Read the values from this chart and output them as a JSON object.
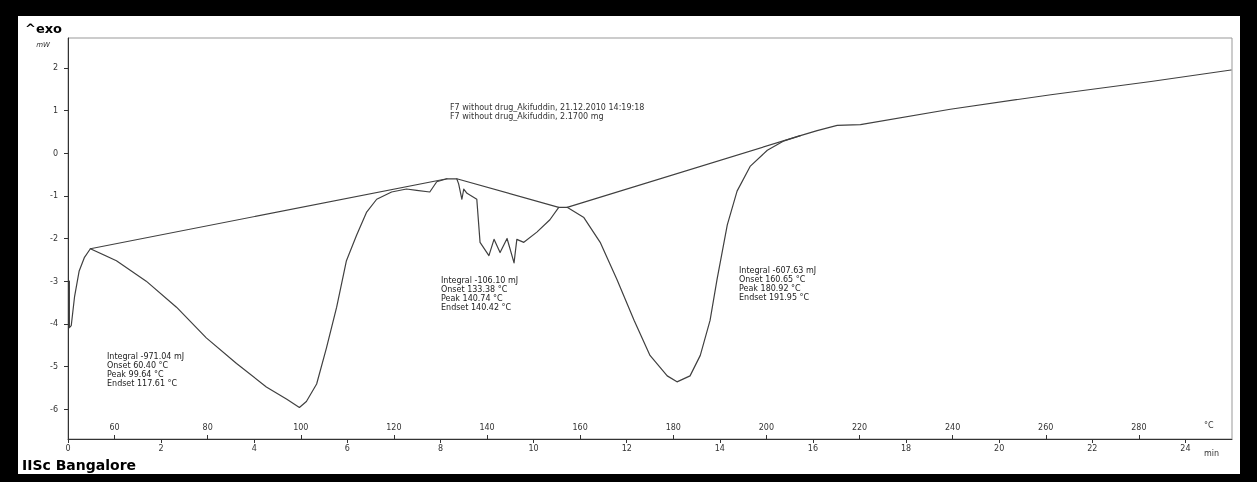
{
  "chart_data": {
    "type": "line",
    "title": "^exo",
    "subtitle": "F7 without drug_Akifuddin, 21.12.2010 14:19:18\nF7 without drug_Akifuddin, 2.1700 mg",
    "xlabel": "min",
    "x2label": "°C",
    "ylabel": "mW",
    "xlim": [
      0,
      25
    ],
    "xticks": [
      0,
      2,
      4,
      6,
      8,
      10,
      12,
      14,
      16,
      18,
      20,
      22,
      24
    ],
    "x2lim": [
      50,
      300
    ],
    "x2ticks": [
      60,
      80,
      100,
      120,
      140,
      160,
      180,
      200,
      220,
      240,
      260,
      280
    ],
    "ylim": [
      -6.7,
      2.7
    ],
    "yticks": [
      -6,
      -5,
      -4,
      -3,
      -2,
      -1,
      0,
      1,
      2
    ],
    "grid": false,
    "marker": "none",
    "line_style": "solid",
    "series": [
      {
        "color": "#404040",
        "x": [
          0.03,
          0.03,
          0.07,
          0.14,
          0.24,
          0.35,
          0.48,
          1.04,
          1.68,
          2.33,
          2.97,
          3.62,
          4.26,
          4.7,
          4.97,
          5.12,
          5.34,
          5.55,
          5.77,
          5.98,
          6.2,
          6.41,
          6.63,
          6.95,
          7.27,
          7.49,
          7.77,
          7.92,
          8.14,
          8.35,
          8.39,
          8.46,
          8.5,
          8.57,
          8.78,
          8.85,
          9.04,
          9.15,
          9.28,
          9.43,
          9.58,
          9.64,
          9.79,
          10.07,
          10.35,
          10.54,
          10.72,
          11.08,
          11.43,
          11.79,
          12.16,
          12.5,
          12.87,
          13.08,
          13.36,
          13.58,
          13.79,
          13.94,
          14.16,
          14.37,
          14.65,
          15.02,
          15.38,
          15.73,
          16.09,
          16.52,
          17.02,
          18.95,
          21.11,
          23.26,
          24.98
        ],
        "values": [
          -3.0,
          -4.09,
          -4.04,
          -3.37,
          -2.76,
          -2.45,
          -2.24,
          -2.52,
          -3.0,
          -3.61,
          -4.33,
          -4.93,
          -5.48,
          -5.77,
          -5.96,
          -5.82,
          -5.41,
          -4.57,
          -3.61,
          -2.52,
          -1.92,
          -1.39,
          -1.08,
          -0.91,
          -0.84,
          -0.87,
          -0.91,
          -0.67,
          -0.6,
          -0.6,
          -0.72,
          -1.08,
          -0.84,
          -0.94,
          -1.08,
          -2.09,
          -2.4,
          -2.02,
          -2.33,
          -2.0,
          -2.57,
          -2.02,
          -2.09,
          -1.85,
          -1.56,
          -1.27,
          -1.27,
          -1.51,
          -2.09,
          -2.96,
          -3.92,
          -4.74,
          -5.22,
          -5.36,
          -5.22,
          -4.74,
          -3.92,
          -2.96,
          -1.68,
          -0.89,
          -0.31,
          0.07,
          0.29,
          0.41,
          0.53,
          0.65,
          0.67,
          1.03,
          1.37,
          1.68,
          1.95
        ]
      },
      {
        "color": "#404040",
        "x": [
          0.48,
          8.14
        ],
        "values": [
          -2.24,
          -0.6
        ]
      },
      {
        "color": "#404040",
        "x": [
          8.35,
          10.54
        ],
        "values": [
          -0.6,
          -1.27
        ]
      },
      {
        "color": "#404040",
        "x": [
          10.72,
          15.73
        ],
        "values": [
          -1.27,
          0.41
        ]
      }
    ],
    "annotations": [
      "Integral -971.04 mJ\nOnset 60.40 °C\nPeak 99.64 °C\nEndset 117.61 °C",
      "Integral -106.10 mJ\nOnset 133.38 °C\nPeak 140.74 °C\nEndset 140.42 °C",
      "Integral -607.63 mJ\nOnset 160.65 °C\nPeak 180.92 °C\nEndset 191.95 °C",
      "IISc Bangalore"
    ]
  }
}
